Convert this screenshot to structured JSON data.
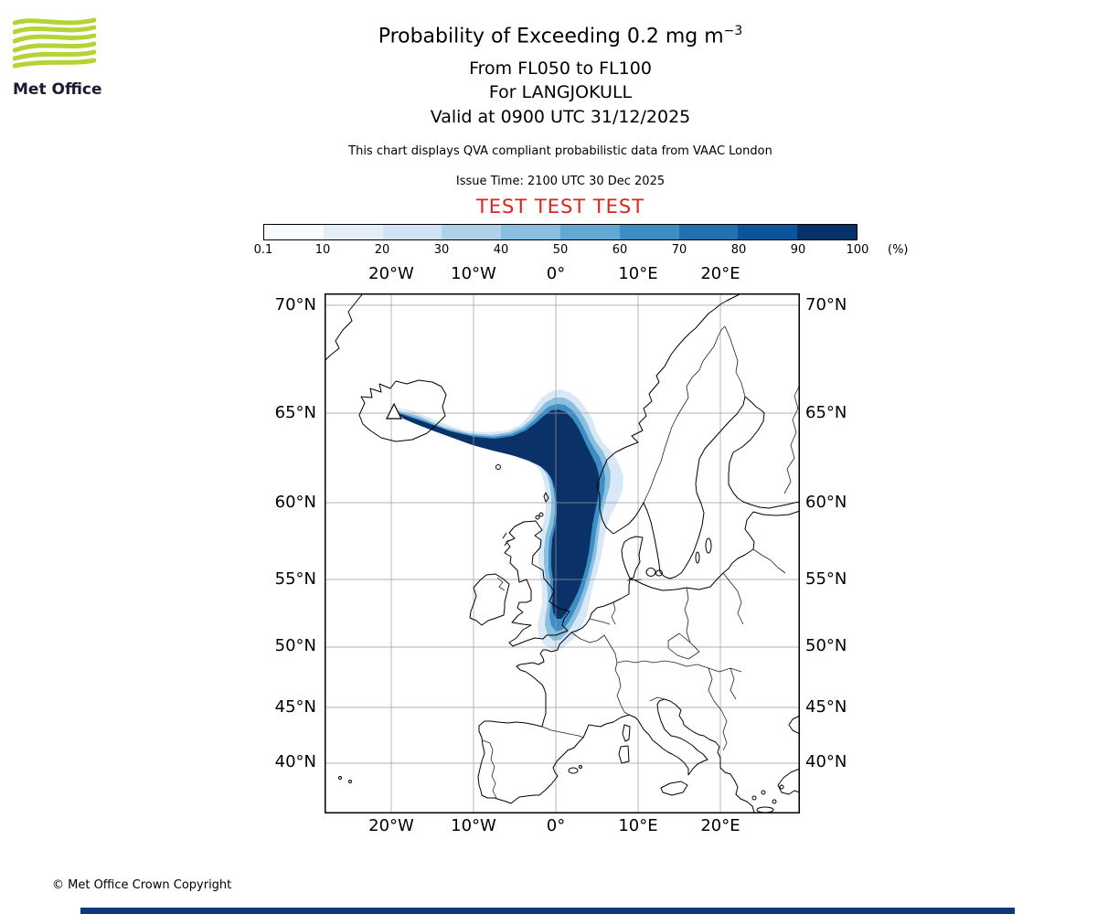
{
  "header": {
    "title_main": "Probability of Exceeding 0.2 mg m",
    "title_exponent": "−3",
    "flight_levels": "From FL050 to FL100",
    "volcano_line": "For LANGJOKULL",
    "valid_line": "Valid at 0900 UTC 31/12/2025",
    "qva_note": "This chart displays QVA compliant probabilistic data from VAAC London",
    "issue_time": "Issue Time: 2100 UTC 30 Dec 2025",
    "test_banner": "TEST TEST TEST",
    "test_color": "#dd2220"
  },
  "logo": {
    "wordmark": "Met Office",
    "wave_color": "#b5d334",
    "text_color": "#1c1a33"
  },
  "colorbar": {
    "ticks": [
      "0.1",
      "10",
      "20",
      "30",
      "40",
      "50",
      "60",
      "70",
      "80",
      "90",
      "100"
    ],
    "unit_label": "(%)",
    "colors": [
      "#f7fbff",
      "#e3eef9",
      "#d0e2f3",
      "#b0d2e9",
      "#8bbfdf",
      "#62a8d3",
      "#3d8ec4",
      "#2272b2",
      "#0b559f",
      "#08306b"
    ]
  },
  "map": {
    "top_lon_labels": [
      "20°W",
      "10°W",
      "0°",
      "10°E",
      "20°E"
    ],
    "bottom_lon_labels": [
      "20°W",
      "10°W",
      "0°",
      "10°E",
      "20°E"
    ],
    "left_lat_labels": [
      "70°N",
      "65°N",
      "60°N",
      "55°N",
      "50°N",
      "45°N",
      "40°N"
    ],
    "right_lat_labels": [
      "70°N",
      "65°N",
      "60°N",
      "55°N",
      "50°N",
      "45°N",
      "40°N"
    ],
    "volcano_name": "LANGJOKULL",
    "plume_levels": [
      {
        "percent": 10,
        "color": "#d9e8f6"
      },
      {
        "percent": 40,
        "color": "#8bbfdf"
      },
      {
        "percent": 70,
        "color": "#3d8ec4"
      },
      {
        "percent": 95,
        "color": "#0a3168"
      }
    ]
  },
  "footer": {
    "copyright": "© Met Office Crown Copyright",
    "bar_color": "#0d3880"
  },
  "chart_data": {
    "type": "probability_contour_map",
    "title": "Probability of Exceeding 0.2 mg m-3",
    "layer_range": "FL050 to FL100",
    "volcano": {
      "name": "LANGJOKULL",
      "lat": 64.6,
      "lon": -20.6
    },
    "valid_time": "0900 UTC 31/12/2025",
    "issue_time": "2100 UTC 30 Dec 2025",
    "source": "VAAC London",
    "map_extent": {
      "lon_min": -28,
      "lon_max": 29.5,
      "lat_min": 35.5,
      "lat_max": 70.5
    },
    "grid_lon_deg": [
      -20,
      -10,
      0,
      10,
      20
    ],
    "grid_lat_deg": [
      40,
      45,
      50,
      55,
      60,
      65,
      70
    ],
    "colorbar_percent_ticks": [
      0.1,
      10,
      20,
      30,
      40,
      50,
      60,
      70,
      80,
      90,
      100
    ],
    "plume_track_lonlat": [
      [
        -20.5,
        64.5
      ],
      [
        -15,
        63.8
      ],
      [
        -10,
        63.2
      ],
      [
        -5,
        62.8
      ],
      [
        -1,
        63.5
      ],
      [
        1,
        64.2
      ],
      [
        2,
        62.0
      ],
      [
        3,
        60.0
      ],
      [
        3.5,
        58.0
      ],
      [
        3,
        56.0
      ],
      [
        2.5,
        54.0
      ],
      [
        1.5,
        52.0
      ],
      [
        1,
        50.5
      ]
    ],
    "max_probability_percent": 100
  }
}
